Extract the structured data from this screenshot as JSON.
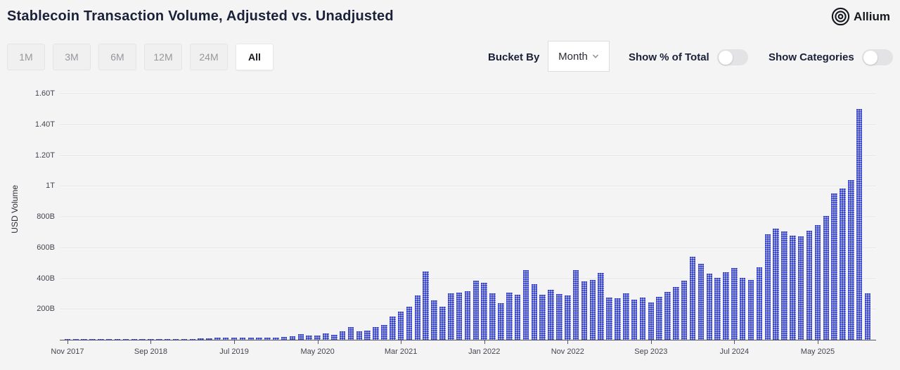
{
  "header": {
    "title": "Stablecoin Transaction Volume, Adjusted vs. Unadjusted",
    "logo_text": "Allium"
  },
  "toolbar": {
    "range_buttons": [
      {
        "label": "1M",
        "active": false
      },
      {
        "label": "3M",
        "active": false
      },
      {
        "label": "6M",
        "active": false
      },
      {
        "label": "12M",
        "active": false
      },
      {
        "label": "24M",
        "active": false
      },
      {
        "label": "All",
        "active": true
      }
    ],
    "bucket_by_label": "Bucket By",
    "bucket_value": "Month",
    "toggles": [
      {
        "label": "Show % of Total",
        "on": false
      },
      {
        "label": "Show Categories",
        "on": false
      }
    ]
  },
  "chart_data": {
    "type": "bar",
    "title": "Stablecoin Transaction Volume, Adjusted vs. Unadjusted",
    "xlabel": "",
    "ylabel": "USD Volume",
    "ylim_billions": [
      0,
      1600
    ],
    "grid": true,
    "legend": "none",
    "bar_color": "#2b38c1",
    "bar_pattern": "white-dot-grid",
    "y_gridlines": [
      {
        "value_billions": 200,
        "label": "200B"
      },
      {
        "value_billions": 400,
        "label": "400B"
      },
      {
        "value_billions": 600,
        "label": "600B"
      },
      {
        "value_billions": 800,
        "label": "800B"
      },
      {
        "value_billions": 1000,
        "label": "1T"
      },
      {
        "value_billions": 1200,
        "label": "1.20T"
      },
      {
        "value_billions": 1400,
        "label": "1.40T"
      },
      {
        "value_billions": 1600,
        "label": "1.60T"
      }
    ],
    "x_ticks": [
      {
        "label": "Nov 2017",
        "month_index": 0
      },
      {
        "label": "Sep 2018",
        "month_index": 10
      },
      {
        "label": "Jul 2019",
        "month_index": 20
      },
      {
        "label": "May 2020",
        "month_index": 30
      },
      {
        "label": "Mar 2021",
        "month_index": 40
      },
      {
        "label": "Jan 2022",
        "month_index": 50
      },
      {
        "label": "Nov 2022",
        "month_index": 60
      },
      {
        "label": "Sep 2023",
        "month_index": 70
      },
      {
        "label": "Jul 2024",
        "month_index": 80
      },
      {
        "label": "May 2025",
        "month_index": 90
      }
    ],
    "categories": [
      "Nov 2017",
      "Dec 2017",
      "Jan 2018",
      "Feb 2018",
      "Mar 2018",
      "Apr 2018",
      "May 2018",
      "Jun 2018",
      "Jul 2018",
      "Aug 2018",
      "Sep 2018",
      "Oct 2018",
      "Nov 2018",
      "Dec 2018",
      "Jan 2019",
      "Feb 2019",
      "Mar 2019",
      "Apr 2019",
      "May 2019",
      "Jun 2019",
      "Jul 2019",
      "Aug 2019",
      "Sep 2019",
      "Oct 2019",
      "Nov 2019",
      "Dec 2019",
      "Jan 2020",
      "Feb 2020",
      "Mar 2020",
      "Apr 2020",
      "May 2020",
      "Jun 2020",
      "Jul 2020",
      "Aug 2020",
      "Sep 2020",
      "Oct 2020",
      "Nov 2020",
      "Dec 2020",
      "Jan 2021",
      "Feb 2021",
      "Mar 2021",
      "Apr 2021",
      "May 2021",
      "Jun 2021",
      "Jul 2021",
      "Aug 2021",
      "Sep 2021",
      "Oct 2021",
      "Nov 2021",
      "Dec 2021",
      "Jan 2022",
      "Feb 2022",
      "Mar 2022",
      "Apr 2022",
      "May 2022",
      "Jun 2022",
      "Jul 2022",
      "Aug 2022",
      "Sep 2022",
      "Oct 2022",
      "Nov 2022",
      "Dec 2022",
      "Jan 2023",
      "Feb 2023",
      "Mar 2023",
      "Apr 2023",
      "May 2023",
      "Jun 2023",
      "Jul 2023",
      "Aug 2023",
      "Sep 2023",
      "Oct 2023",
      "Nov 2023",
      "Dec 2023",
      "Jan 2024",
      "Feb 2024",
      "Mar 2024",
      "Apr 2024",
      "May 2024",
      "Jun 2024",
      "Jul 2024",
      "Aug 2024",
      "Sep 2024",
      "Oct 2024",
      "Nov 2024",
      "Dec 2024",
      "Jan 2025",
      "Feb 2025",
      "Mar 2025",
      "Apr 2025",
      "May 2025",
      "Jun 2025",
      "Jul 2025",
      "Aug 2025",
      "Sep 2025",
      "Oct 2025",
      "Nov 2025"
    ],
    "values_billions": [
      2,
      3,
      3,
      2,
      2,
      2,
      3,
      3,
      3,
      4,
      4,
      5,
      6,
      6,
      5,
      6,
      8,
      10,
      12,
      13,
      13,
      12,
      14,
      14,
      15,
      16,
      18,
      22,
      37,
      28,
      29,
      40,
      34,
      53,
      81,
      53,
      60,
      81,
      96,
      153,
      184,
      215,
      288,
      443,
      257,
      215,
      301,
      308,
      316,
      383,
      370,
      301,
      239,
      308,
      293,
      452,
      360,
      293,
      324,
      298,
      288,
      452,
      381,
      389,
      435,
      273,
      270,
      301,
      262,
      273,
      243,
      281,
      313,
      344,
      383,
      541,
      495,
      430,
      401,
      440,
      468,
      401,
      390,
      471,
      684,
      722,
      704,
      677,
      673,
      707,
      745,
      805,
      950,
      985,
      1040,
      1500,
      300
    ]
  }
}
